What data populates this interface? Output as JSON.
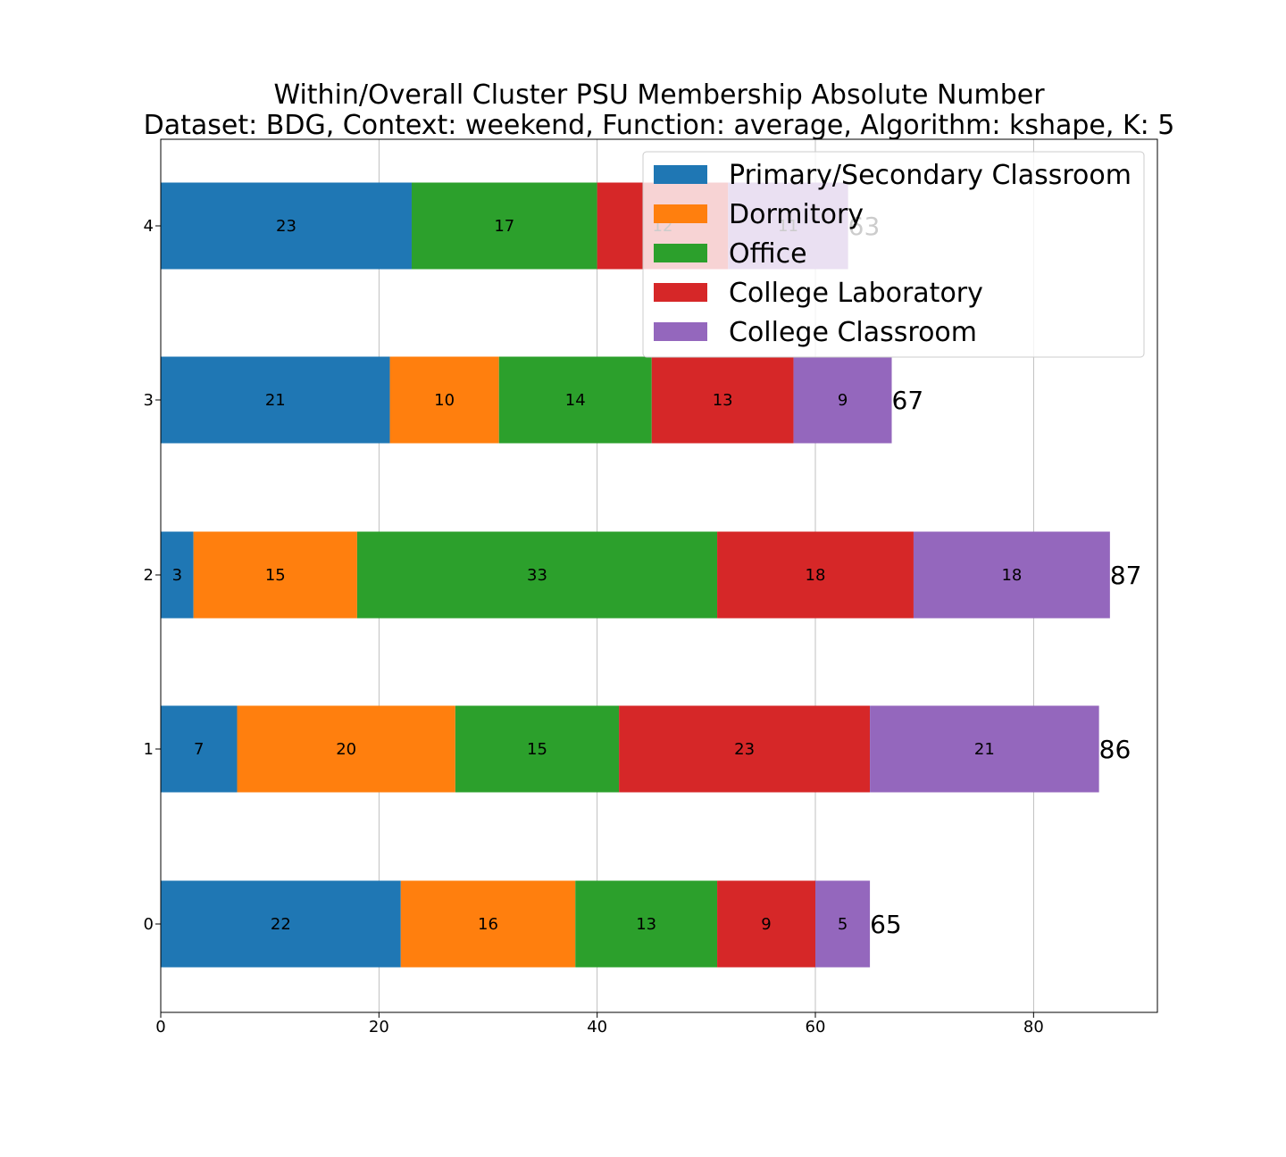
{
  "chart_data": {
    "type": "bar",
    "orientation": "horizontal",
    "stacked": true,
    "title": "Within/Overall Cluster PSU Membership Absolute Number",
    "subtitle": "Dataset: BDG, Context: weekend, Function: average, Algorithm: kshape, K: 5",
    "xlabel": "",
    "ylabel": "",
    "categories": [
      "0",
      "1",
      "2",
      "3",
      "4"
    ],
    "xlim": [
      0,
      91.35
    ],
    "xticks": [
      "0",
      "20",
      "40",
      "60",
      "80"
    ],
    "grid": "x",
    "legend_position": "top-right",
    "series": [
      {
        "name": "Primary/Secondary Classroom",
        "color": "#1f77b4",
        "values": [
          22,
          7,
          3,
          21,
          23
        ]
      },
      {
        "name": "Dormitory",
        "color": "#ff7f0e",
        "values": [
          16,
          20,
          15,
          10,
          0
        ]
      },
      {
        "name": "Office",
        "color": "#2ca02c",
        "values": [
          13,
          15,
          33,
          14,
          17
        ]
      },
      {
        "name": "College Laboratory",
        "color": "#d62728",
        "values": [
          9,
          23,
          18,
          13,
          12
        ]
      },
      {
        "name": "College Classroom",
        "color": "#9467bd",
        "values": [
          5,
          21,
          18,
          9,
          11
        ]
      }
    ],
    "totals": [
      65,
      86,
      87,
      67,
      63
    ]
  }
}
